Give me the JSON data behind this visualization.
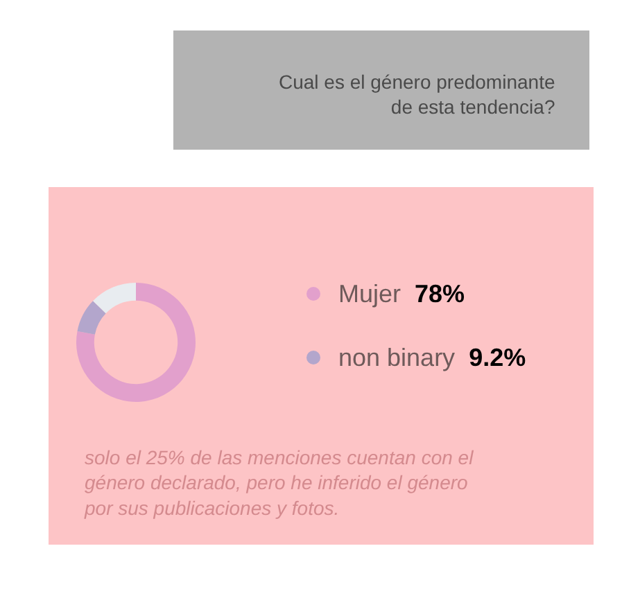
{
  "chart_data": {
    "type": "donut",
    "title": "Cual es el género predominante de esta tendencia?",
    "categories": [
      "Mujer",
      "non binary",
      null
    ],
    "values": [
      78,
      9.2,
      12.8
    ],
    "colors": [
      "#e2a0cc",
      "#b3a6cc",
      "#e8ecf0"
    ],
    "value_labels": [
      "78%",
      "9.2%",
      null
    ],
    "legend": "right",
    "annotations": [
      "solo el 25% de las menciones cuentan con el género declarado, pero he inferido el género por sus publicaciones y fotos."
    ]
  }
}
